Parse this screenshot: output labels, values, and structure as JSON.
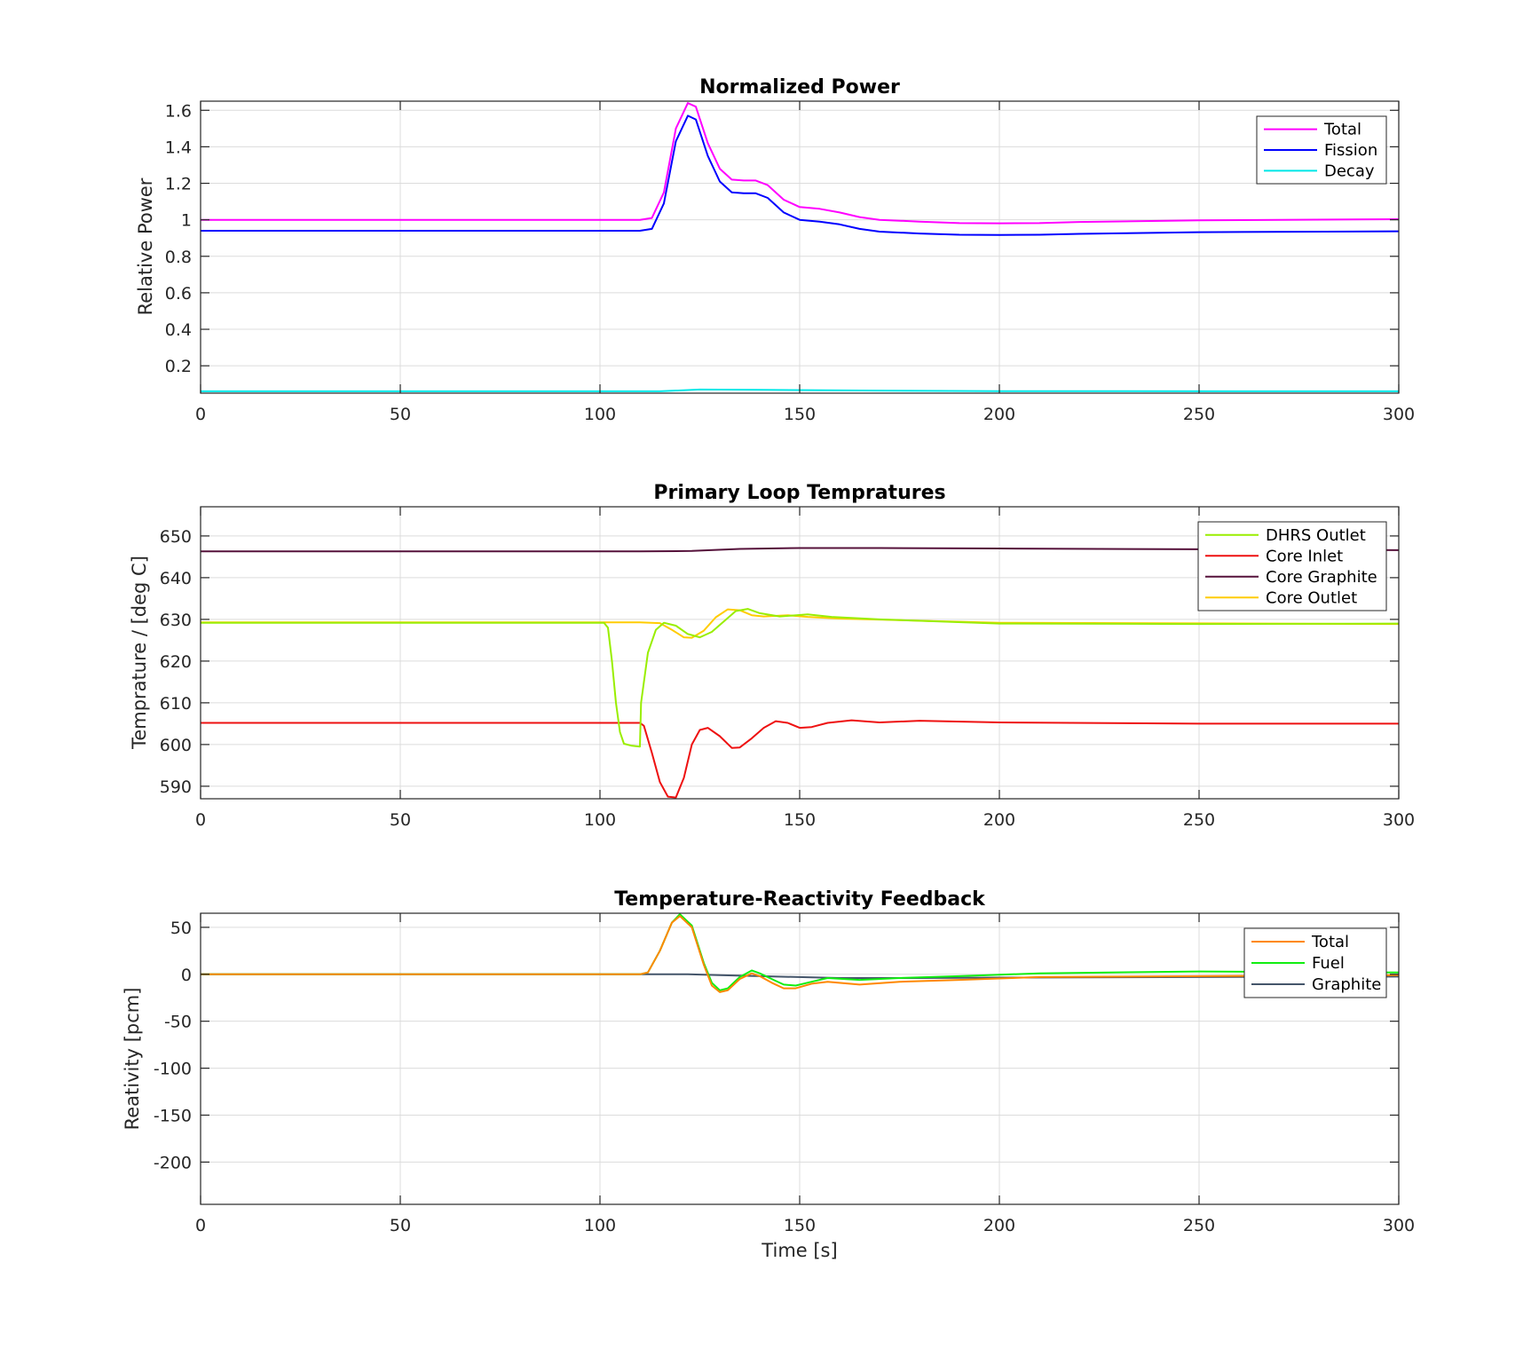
{
  "chart_data": [
    {
      "type": "line",
      "title": "Normalized Power",
      "xlabel": "",
      "ylabel": "Relative Power",
      "xlim": [
        0,
        300
      ],
      "ylim": [
        0.05,
        1.65
      ],
      "xticks": [
        0,
        50,
        100,
        150,
        200,
        250,
        300
      ],
      "yticks": [
        0.2,
        0.4,
        0.6,
        0.8,
        1,
        1.2,
        1.4,
        1.6
      ],
      "ytick_labels": [
        "0.2",
        "0.4",
        "0.6",
        "0.8",
        "1",
        "1.2",
        "1.4",
        "1.6"
      ],
      "grid": true,
      "legend_position": "top-right",
      "series": [
        {
          "name": "Total",
          "color": "#ff00ff",
          "points": [
            [
              0,
              1.0
            ],
            [
              110,
              1.0
            ],
            [
              113,
              1.01
            ],
            [
              116,
              1.15
            ],
            [
              119,
              1.5
            ],
            [
              122,
              1.64
            ],
            [
              124,
              1.62
            ],
            [
              127,
              1.42
            ],
            [
              130,
              1.28
            ],
            [
              133,
              1.22
            ],
            [
              136,
              1.215
            ],
            [
              139,
              1.215
            ],
            [
              142,
              1.19
            ],
            [
              146,
              1.11
            ],
            [
              150,
              1.07
            ],
            [
              155,
              1.06
            ],
            [
              160,
              1.04
            ],
            [
              165,
              1.015
            ],
            [
              170,
              1.0
            ],
            [
              180,
              0.99
            ],
            [
              190,
              0.982
            ],
            [
              200,
              0.981
            ],
            [
              210,
              0.982
            ],
            [
              220,
              0.988
            ],
            [
              250,
              0.997
            ],
            [
              300,
              1.003
            ]
          ]
        },
        {
          "name": "Fission",
          "color": "#0000ff",
          "points": [
            [
              0,
              0.94
            ],
            [
              110,
              0.94
            ],
            [
              113,
              0.95
            ],
            [
              116,
              1.09
            ],
            [
              119,
              1.43
            ],
            [
              122,
              1.57
            ],
            [
              124,
              1.55
            ],
            [
              127,
              1.35
            ],
            [
              130,
              1.21
            ],
            [
              133,
              1.15
            ],
            [
              136,
              1.145
            ],
            [
              139,
              1.145
            ],
            [
              142,
              1.12
            ],
            [
              146,
              1.04
            ],
            [
              150,
              1.0
            ],
            [
              155,
              0.99
            ],
            [
              160,
              0.975
            ],
            [
              165,
              0.95
            ],
            [
              170,
              0.935
            ],
            [
              180,
              0.925
            ],
            [
              190,
              0.918
            ],
            [
              200,
              0.917
            ],
            [
              210,
              0.918
            ],
            [
              220,
              0.923
            ],
            [
              250,
              0.932
            ],
            [
              300,
              0.937
            ]
          ]
        },
        {
          "name": "Decay",
          "color": "#00e8e8",
          "points": [
            [
              0,
              0.06
            ],
            [
              115,
              0.06
            ],
            [
              125,
              0.07
            ],
            [
              140,
              0.068
            ],
            [
              170,
              0.064
            ],
            [
              200,
              0.061
            ],
            [
              300,
              0.06
            ]
          ]
        }
      ]
    },
    {
      "type": "line",
      "title": "Primary Loop Tempratures",
      "xlabel": "",
      "ylabel": "Temprature / [deg C]",
      "xlim": [
        0,
        300
      ],
      "ylim": [
        587,
        657
      ],
      "xticks": [
        0,
        50,
        100,
        150,
        200,
        250,
        300
      ],
      "yticks": [
        590,
        600,
        610,
        620,
        630,
        640,
        650
      ],
      "ytick_labels": [
        "590",
        "600",
        "610",
        "620",
        "630",
        "640",
        "650"
      ],
      "grid": true,
      "legend_position": "top-right",
      "series": [
        {
          "name": "DHRS Outlet",
          "color": "#99ee00",
          "points": [
            [
              0,
              629.2
            ],
            [
              101,
              629.2
            ],
            [
              102,
              628
            ],
            [
              103,
              620
            ],
            [
              104,
              610
            ],
            [
              105,
              603
            ],
            [
              106,
              600.2
            ],
            [
              108,
              599.7
            ],
            [
              110,
              599.5
            ],
            [
              110.3,
              610
            ],
            [
              111,
              615
            ],
            [
              112,
              622
            ],
            [
              114,
              627.5
            ],
            [
              116,
              629.2
            ],
            [
              119,
              628.5
            ],
            [
              122,
              626.5
            ],
            [
              125,
              625.7
            ],
            [
              128,
              627
            ],
            [
              131,
              629.5
            ],
            [
              134,
              632
            ],
            [
              137,
              632.5
            ],
            [
              140,
              631.5
            ],
            [
              145,
              630.7
            ],
            [
              152,
              631.2
            ],
            [
              158,
              630.6
            ],
            [
              170,
              630
            ],
            [
              200,
              629
            ],
            [
              250,
              628.9
            ],
            [
              300,
              629
            ]
          ]
        },
        {
          "name": "Core Inlet",
          "color": "#ee1111",
          "points": [
            [
              0,
              605.2
            ],
            [
              110,
              605.2
            ],
            [
              111,
              604.5
            ],
            [
              113,
              598
            ],
            [
              115,
              591
            ],
            [
              117,
              587.5
            ],
            [
              119,
              587.3
            ],
            [
              121,
              592
            ],
            [
              123,
              600
            ],
            [
              125,
              603.5
            ],
            [
              127,
              604
            ],
            [
              130,
              602
            ],
            [
              133,
              599.2
            ],
            [
              135,
              599.3
            ],
            [
              138,
              601.5
            ],
            [
              141,
              604
            ],
            [
              144,
              605.6
            ],
            [
              147,
              605.2
            ],
            [
              150,
              604
            ],
            [
              153,
              604.2
            ],
            [
              157,
              605.2
            ],
            [
              163,
              605.8
            ],
            [
              170,
              605.3
            ],
            [
              180,
              605.7
            ],
            [
              200,
              605.3
            ],
            [
              250,
              605
            ],
            [
              300,
              605
            ]
          ]
        },
        {
          "name": "Core Graphite",
          "color": "#55113a",
          "points": [
            [
              0,
              646.3
            ],
            [
              110,
              646.3
            ],
            [
              123,
              646.4
            ],
            [
              135,
              646.9
            ],
            [
              150,
              647.1
            ],
            [
              170,
              647.1
            ],
            [
              200,
              647
            ],
            [
              250,
              646.8
            ],
            [
              300,
              646.6
            ]
          ]
        },
        {
          "name": "Core Outlet",
          "color": "#ffcc00",
          "points": [
            [
              0,
              629.3
            ],
            [
              110,
              629.3
            ],
            [
              115,
              629.1
            ],
            [
              118,
              627.5
            ],
            [
              121,
              625.7
            ],
            [
              123,
              625.6
            ],
            [
              126,
              627.3
            ],
            [
              129,
              630.5
            ],
            [
              132,
              632.4
            ],
            [
              135,
              632.2
            ],
            [
              138,
              631
            ],
            [
              141,
              630.7
            ],
            [
              147,
              631
            ],
            [
              152,
              630.6
            ],
            [
              160,
              630.2
            ],
            [
              175,
              629.8
            ],
            [
              200,
              629.2
            ],
            [
              300,
              628.9
            ]
          ]
        }
      ]
    },
    {
      "type": "line",
      "title": "Temperature-Reactivity Feedback",
      "xlabel": "Time [s]",
      "ylabel": "Reativity [pcm]",
      "xlim": [
        0,
        300
      ],
      "ylim": [
        -245,
        65
      ],
      "xticks": [
        0,
        50,
        100,
        150,
        200,
        250,
        300
      ],
      "yticks": [
        -200,
        -150,
        -100,
        -50,
        0,
        50
      ],
      "ytick_labels": [
        "-200",
        "-150",
        "-100",
        "-50",
        "0",
        "50"
      ],
      "grid": true,
      "legend_position": "top-right",
      "series": [
        {
          "name": "Total",
          "color": "#ff8800",
          "points": [
            [
              0,
              0
            ],
            [
              110,
              0
            ],
            [
              112,
              2
            ],
            [
              115,
              25
            ],
            [
              118,
              55
            ],
            [
              120,
              62
            ],
            [
              123,
              50
            ],
            [
              126,
              10
            ],
            [
              128,
              -12
            ],
            [
              130,
              -19
            ],
            [
              132,
              -17
            ],
            [
              135,
              -5
            ],
            [
              138,
              1
            ],
            [
              140,
              -2
            ],
            [
              143,
              -9
            ],
            [
              146,
              -15
            ],
            [
              149,
              -15
            ],
            [
              153,
              -10
            ],
            [
              157,
              -8
            ],
            [
              165,
              -11
            ],
            [
              175,
              -8
            ],
            [
              190,
              -6
            ],
            [
              210,
              -3
            ],
            [
              250,
              -2
            ],
            [
              300,
              -1
            ]
          ]
        },
        {
          "name": "Fuel",
          "color": "#11ee11",
          "points": [
            [
              0,
              0
            ],
            [
              110,
              0
            ],
            [
              112,
              2
            ],
            [
              115,
              25
            ],
            [
              118,
              55
            ],
            [
              120,
              64
            ],
            [
              123,
              52
            ],
            [
              126,
              12
            ],
            [
              128,
              -9
            ],
            [
              130,
              -17
            ],
            [
              132,
              -15
            ],
            [
              135,
              -3
            ],
            [
              138,
              4
            ],
            [
              140,
              1
            ],
            [
              143,
              -5
            ],
            [
              146,
              -11
            ],
            [
              149,
              -12
            ],
            [
              153,
              -8
            ],
            [
              157,
              -4
            ],
            [
              165,
              -6
            ],
            [
              175,
              -4
            ],
            [
              190,
              -2
            ],
            [
              210,
              1
            ],
            [
              250,
              3
            ],
            [
              300,
              2
            ]
          ]
        },
        {
          "name": "Graphite",
          "color": "#44556a",
          "points": [
            [
              0,
              0
            ],
            [
              110,
              0
            ],
            [
              122,
              0
            ],
            [
              130,
              -1
            ],
            [
              140,
              -2
            ],
            [
              160,
              -4
            ],
            [
              180,
              -4
            ],
            [
              200,
              -3.5
            ],
            [
              250,
              -3
            ],
            [
              300,
              -2.5
            ]
          ]
        }
      ]
    }
  ]
}
